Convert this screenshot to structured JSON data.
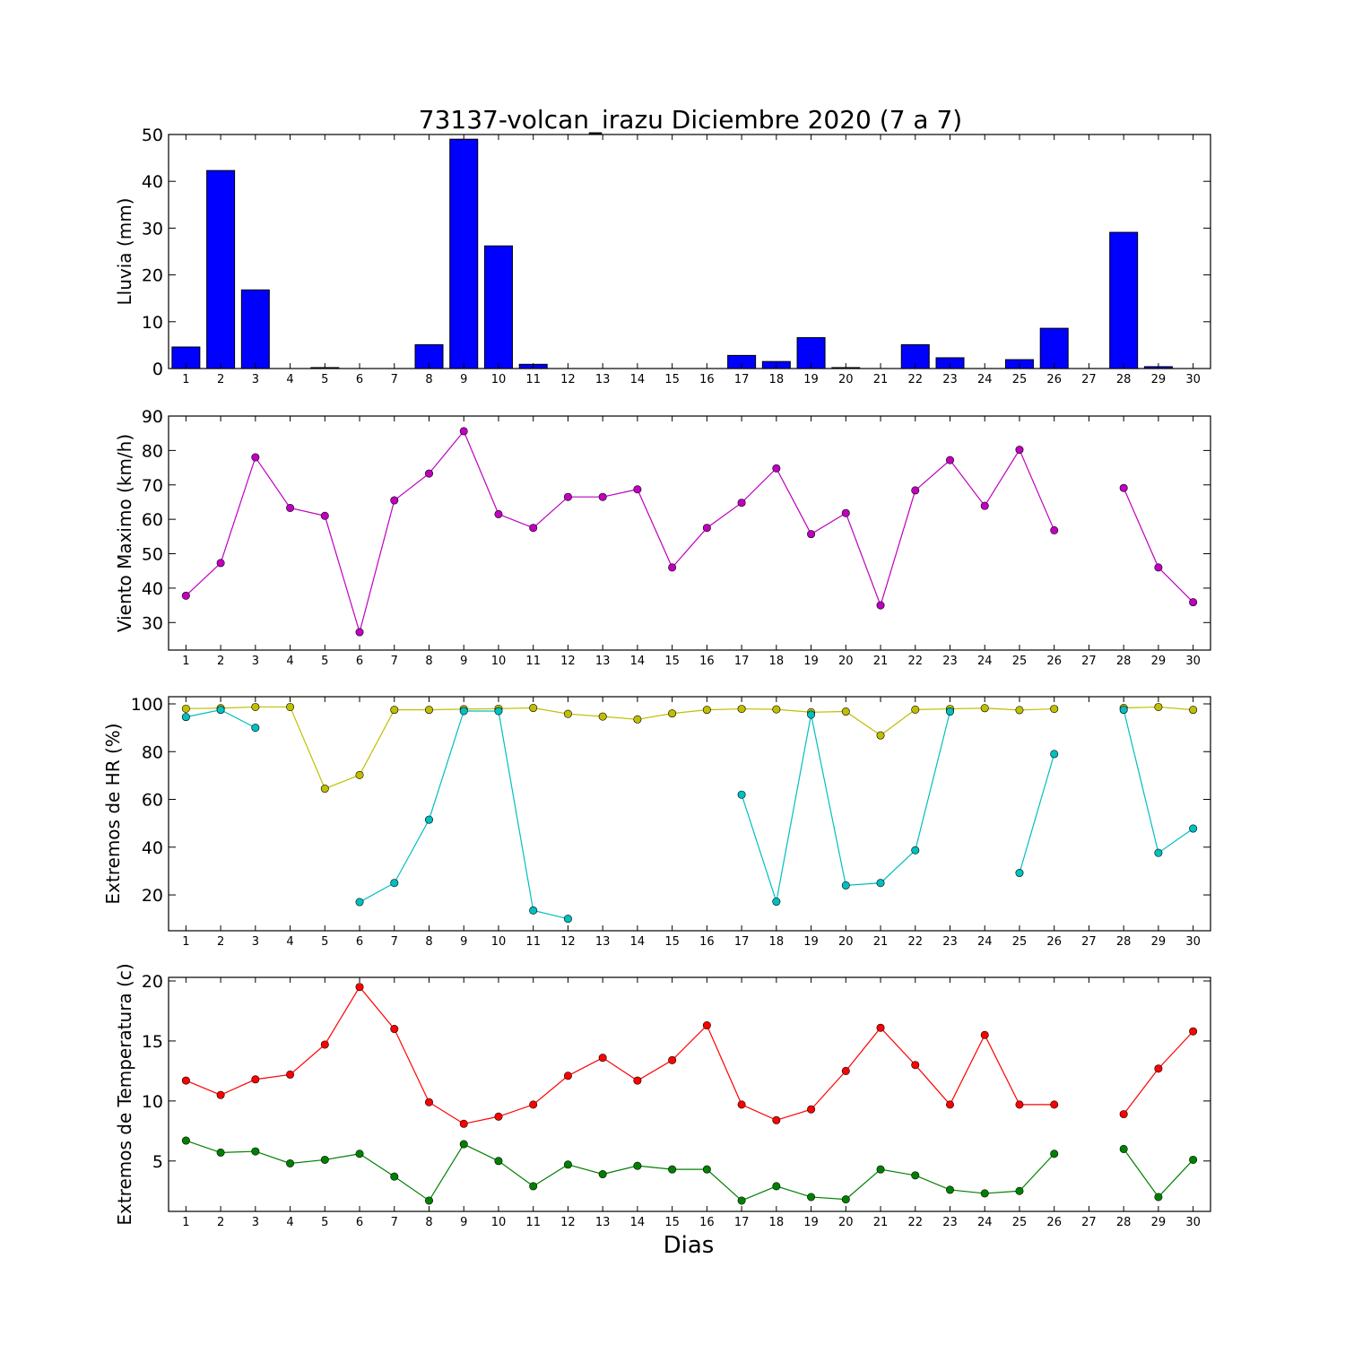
{
  "chart_data": {
    "title": "73137-volcan_irazu Diciembre 2020  (7 a 7)",
    "xlabel": "Dias",
    "days": [
      1,
      2,
      3,
      4,
      5,
      6,
      7,
      8,
      9,
      10,
      11,
      12,
      13,
      14,
      15,
      16,
      17,
      18,
      19,
      20,
      21,
      22,
      23,
      24,
      25,
      26,
      27,
      28,
      29,
      30
    ],
    "panels": [
      {
        "id": "lluvia",
        "type": "bar",
        "ylabel": "Lluvia (mm)",
        "ylim": [
          0,
          50
        ],
        "yticks": [
          0,
          10,
          20,
          30,
          40,
          50
        ],
        "series": [
          {
            "color": "#0000ff",
            "values": [
              4.6,
              42.3,
              16.8,
              0,
              0.2,
              0,
              0,
              5.1,
              49.0,
              26.2,
              0.9,
              0,
              0,
              0,
              0,
              0,
              2.8,
              1.5,
              6.6,
              0.2,
              0,
              5.1,
              2.3,
              0,
              1.9,
              8.6,
              0,
              29.1,
              0.4,
              0
            ]
          }
        ]
      },
      {
        "id": "viento",
        "type": "line",
        "ylabel": "Viento Maximo (km/h)",
        "ylim": [
          22,
          90
        ],
        "yticks": [
          30,
          40,
          50,
          60,
          70,
          80,
          90
        ],
        "series": [
          {
            "color": "#bf00bf",
            "values": [
              37.8,
              47.3,
              78.0,
              63.3,
              61.0,
              27.2,
              65.5,
              73.3,
              85.6,
              61.5,
              57.5,
              66.5,
              66.5,
              68.7,
              46.0,
              57.5,
              64.8,
              74.8,
              55.7,
              61.8,
              35.0,
              68.4,
              77.2,
              63.9,
              80.2,
              56.8,
              null,
              69.1,
              46.0,
              35.9
            ]
          }
        ]
      },
      {
        "id": "hr",
        "type": "line",
        "ylabel": "Extremos de HR (%)",
        "ylim": [
          5,
          103
        ],
        "yticks": [
          20,
          40,
          60,
          80,
          100
        ],
        "series": [
          {
            "color": "#bfbf00",
            "values": [
              98.0,
              98.2,
              98.7,
              98.7,
              64.5,
              70.2,
              97.5,
              97.5,
              97.8,
              98.0,
              98.3,
              95.8,
              94.7,
              93.5,
              96.0,
              97.5,
              97.9,
              97.7,
              96.5,
              96.8,
              86.8,
              97.6,
              97.9,
              98.2,
              97.4,
              97.9,
              null,
              98.3,
              98.7,
              97.5
            ]
          },
          {
            "color": "#00bfbf",
            "values": [
              94.5,
              97.5,
              90.0,
              null,
              null,
              17.0,
              25.0,
              51.5,
              97.0,
              97.0,
              13.5,
              10.0,
              null,
              null,
              null,
              null,
              62.0,
              17.2,
              95.5,
              24.0,
              25.0,
              38.7,
              96.8,
              null,
              29.2,
              79.0,
              null,
              97.5,
              37.6,
              47.8
            ]
          }
        ]
      },
      {
        "id": "temp",
        "type": "line",
        "ylabel": "Extremos de Temperatura (c)",
        "ylim": [
          0.8,
          20.3
        ],
        "yticks": [
          5,
          10,
          15,
          20
        ],
        "series": [
          {
            "color": "#ff0000",
            "values": [
              11.7,
              10.5,
              11.8,
              12.2,
              14.7,
              19.5,
              16.0,
              9.9,
              8.1,
              8.7,
              9.7,
              12.1,
              13.6,
              11.7,
              13.4,
              16.3,
              9.7,
              8.4,
              9.3,
              12.5,
              16.1,
              13.0,
              9.7,
              15.5,
              9.7,
              9.7,
              null,
              8.9,
              12.7,
              15.8
            ]
          },
          {
            "color": "#008000",
            "values": [
              6.7,
              5.7,
              5.8,
              4.8,
              5.1,
              5.6,
              3.7,
              1.7,
              6.4,
              5.0,
              2.9,
              4.7,
              3.9,
              4.6,
              4.3,
              4.3,
              1.7,
              2.9,
              2.0,
              1.8,
              4.3,
              3.8,
              2.6,
              2.3,
              2.5,
              5.6,
              null,
              6.0,
              2.0,
              5.1
            ]
          }
        ]
      }
    ]
  }
}
